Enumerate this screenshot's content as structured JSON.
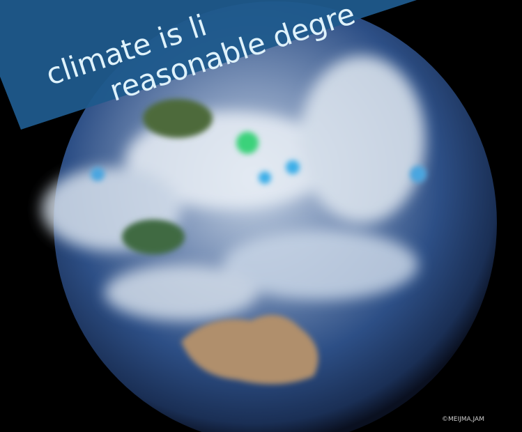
{
  "banner": {
    "lines": [
      "climate is li",
      "reasonable degre"
    ]
  },
  "credit": "©MEIJMA,JAM"
}
